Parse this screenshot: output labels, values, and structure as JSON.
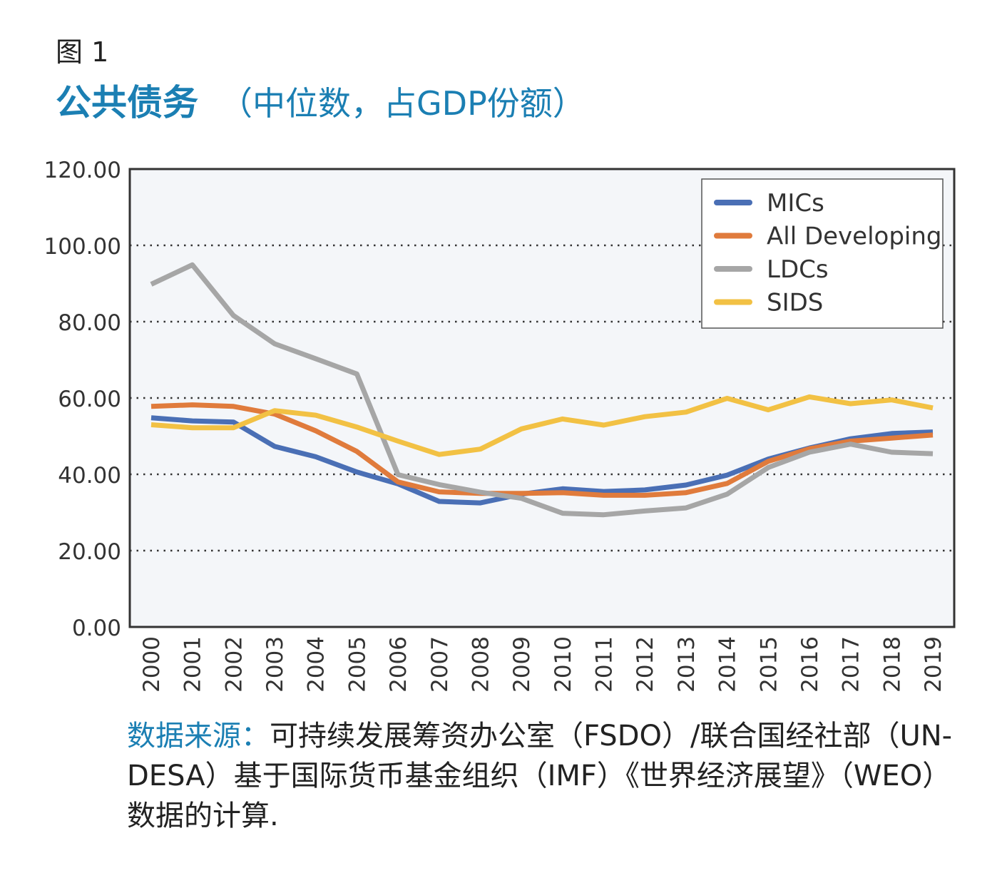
{
  "figure_label": "图 1",
  "title_main": "公共债务",
  "title_sub": "（中位数，占GDP份额）",
  "source_label": "数据来源：",
  "source_text": "可持续发展筹资办公室（FSDO）/联合国经社部（UN-DESA）基于国际货币基金组织（IMF）《世界经济展望》（WEO）数据的计算.",
  "chart_data": {
    "type": "line",
    "x": [
      "2000",
      "2001",
      "2002",
      "2003",
      "2004",
      "2005",
      "2006",
      "2007",
      "2008",
      "2009",
      "2010",
      "2011",
      "2012",
      "2013",
      "2014",
      "2015",
      "2016",
      "2017",
      "2018",
      "2019"
    ],
    "ylim": [
      0,
      120
    ],
    "yticks": [
      "0.00",
      "20.00",
      "40.00",
      "60.00",
      "80.00",
      "100.00",
      "120.00"
    ],
    "grid": "horizontal dotted",
    "legend_position": "top-right",
    "series": [
      {
        "name": "MICs",
        "color": "#4a6fb5",
        "values": [
          54.8,
          54.0,
          53.7,
          47.3,
          44.6,
          40.6,
          37.5,
          32.9,
          32.5,
          34.8,
          36.2,
          35.5,
          35.9,
          37.2,
          39.8,
          44.0,
          46.9,
          49.3,
          50.7,
          51.1
        ]
      },
      {
        "name": "All Developing",
        "color": "#e07b3c",
        "values": [
          57.8,
          58.2,
          57.8,
          55.8,
          51.4,
          46.0,
          38.0,
          35.4,
          35.0,
          35.0,
          35.2,
          34.5,
          34.5,
          35.2,
          37.6,
          43.4,
          46.7,
          48.7,
          49.5,
          50.3
        ]
      },
      {
        "name": "LDCs",
        "color": "#a6a6a6",
        "values": [
          89.8,
          94.9,
          81.6,
          74.2,
          70.3,
          66.3,
          39.9,
          37.3,
          35.3,
          33.7,
          29.8,
          29.4,
          30.4,
          31.2,
          34.8,
          41.8,
          45.8,
          47.9,
          45.8,
          45.4
        ]
      },
      {
        "name": "SIDS",
        "color": "#f2c144",
        "values": [
          53.0,
          52.2,
          52.2,
          56.7,
          55.5,
          52.4,
          48.7,
          45.2,
          46.6,
          51.9,
          54.5,
          52.9,
          55.1,
          56.3,
          59.9,
          56.9,
          60.3,
          58.5,
          59.5,
          57.4
        ]
      }
    ]
  }
}
